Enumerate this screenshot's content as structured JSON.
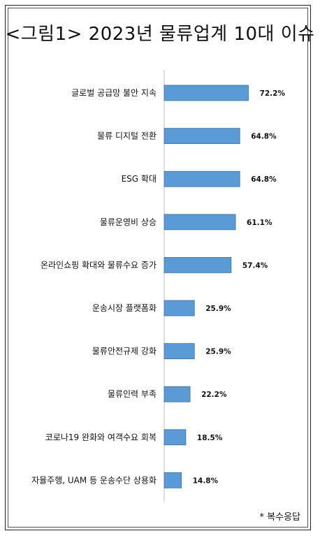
{
  "chart_data": {
    "type": "bar",
    "orientation": "horizontal",
    "title": "<그림1> 2023년 물류업계 10대 이슈",
    "categories": [
      "글로벌 공급망 불안 지속",
      "물류 디지털 전환",
      "ESG 확대",
      "물류운영비 상승",
      "온라인쇼핑 확대와 물류수요 증가",
      "운송시장 플랫폼화",
      "물류안전규제 강화",
      "물류인력 부족",
      "코로나19 완화와 여객수요 회복",
      "자율주행, UAM 등 운송수단 상용화"
    ],
    "values": [
      72.2,
      64.8,
      64.8,
      61.1,
      57.4,
      25.9,
      25.9,
      22.2,
      18.5,
      14.8
    ],
    "value_labels": [
      "72.2%",
      "64.8%",
      "64.8%",
      "61.1%",
      "57.4%",
      "25.9%",
      "25.9%",
      "22.2%",
      "18.5%",
      "14.8%"
    ],
    "unit": "%",
    "xlim": [
      0,
      100
    ],
    "grid": false,
    "legend": "none",
    "bar_color": "#5b9bd5",
    "note": "* 복수응답"
  }
}
